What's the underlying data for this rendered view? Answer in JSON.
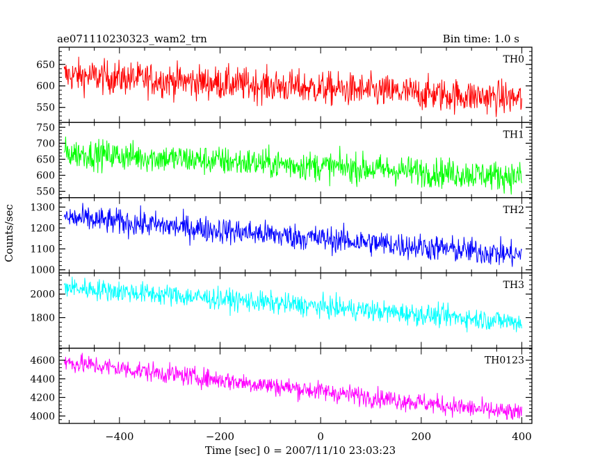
{
  "chart_data": {
    "type": "line",
    "title": "ae071110230323_wam2_trn",
    "bin_time_label": "Bin time: 1.0 s",
    "xlabel": "Time [sec] 0 = 2007/11/10 23:03:23",
    "ylabel": "Counts/sec",
    "xlim": [
      -520,
      420
    ],
    "x_ticks": [
      -400,
      -200,
      0,
      200,
      400
    ],
    "x_tick_labels": [
      "−400",
      "−200",
      "0",
      "200",
      "400"
    ],
    "x_range": [
      -510,
      400
    ],
    "panels": [
      {
        "name": "TH0",
        "color": "#ff0000",
        "ylim": [
          515,
          690
        ],
        "y_ticks": [
          550,
          600,
          650
        ],
        "y_tick_labels": [
          "550",
          "600",
          "650"
        ],
        "trend_start": 625,
        "trend_end": 570,
        "noise": 28
      },
      {
        "name": "TH1",
        "color": "#00ff00",
        "ylim": [
          530,
          765
        ],
        "y_ticks": [
          550,
          600,
          650,
          700,
          750
        ],
        "y_tick_labels": [
          "550",
          "600",
          "650",
          "700",
          "750"
        ],
        "trend_start": 670,
        "trend_end": 595,
        "noise": 33
      },
      {
        "name": "TH2",
        "color": "#0000ff",
        "ylim": [
          985,
          1345
        ],
        "y_ticks": [
          1000,
          1100,
          1200,
          1300
        ],
        "y_tick_labels": [
          "1000",
          "1100",
          "1200",
          "1300"
        ],
        "trend_start": 1250,
        "trend_end": 1070,
        "noise": 45
      },
      {
        "name": "TH3",
        "color": "#00ffff",
        "ylim": [
          1540,
          2180
        ],
        "y_ticks": [
          1800,
          2000
        ],
        "y_tick_labels": [
          "1800",
          "2000"
        ],
        "trend_start": 2060,
        "trend_end": 1760,
        "noise": 65
      },
      {
        "name": "TH0123",
        "color": "#ff00ff",
        "ylim": [
          3920,
          4730
        ],
        "y_ticks": [
          4000,
          4200,
          4400,
          4600
        ],
        "y_tick_labels": [
          "4000",
          "4200",
          "4400",
          "4600"
        ],
        "trend_start": 4580,
        "trend_end": 4020,
        "noise": 75
      }
    ]
  }
}
